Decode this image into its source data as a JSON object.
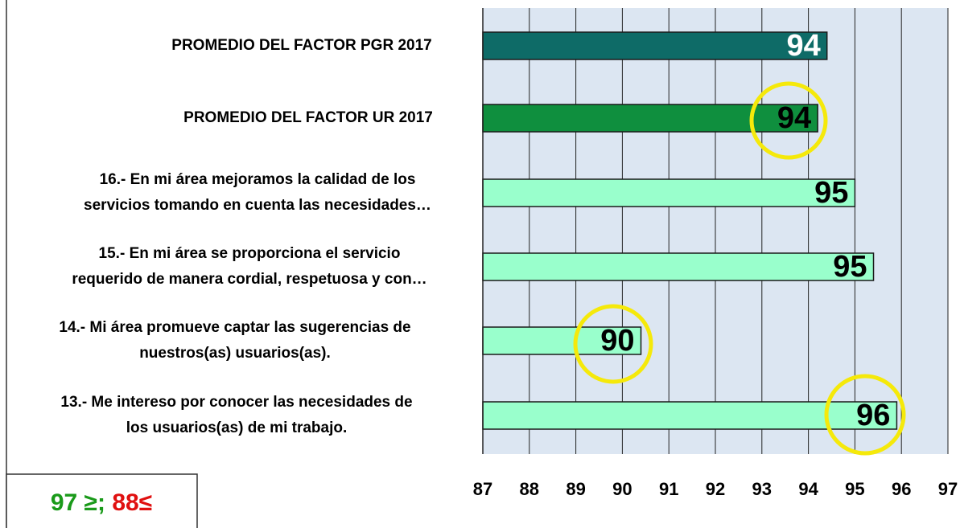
{
  "chart_data": {
    "type": "bar",
    "orientation": "horizontal",
    "categories": [
      [
        "PROMEDIO DEL FACTOR PGR 2017"
      ],
      [
        "PROMEDIO DEL FACTOR UR 2017"
      ],
      [
        "16.- En mi área mejoramos la calidad de los",
        "servicios tomando en cuenta las necesidades…"
      ],
      [
        "15.- En mi área se proporciona el servicio",
        "requerido de manera cordial, respetuosa y con…"
      ],
      [
        "14.- Mi área promueve captar las sugerencias de",
        "nuestros(as) usuarios(as)."
      ],
      [
        "13.- Me intereso por conocer las necesidades de",
        "los usuarios(as) de mi trabajo."
      ]
    ],
    "values": [
      94.4,
      94.2,
      95.0,
      95.4,
      90.4,
      95.9
    ],
    "value_labels": [
      "94",
      "94",
      "95",
      "95",
      "90",
      "96"
    ],
    "colors": [
      "#0e6b67",
      "#0f8f3e",
      "#99ffcc",
      "#99ffcc",
      "#99ffcc",
      "#99ffcc"
    ],
    "label_colors": [
      "#ffffff",
      "#000000",
      "#000000",
      "#000000",
      "#000000",
      "#000000"
    ],
    "xlim": [
      87,
      97
    ],
    "xticks": [
      87,
      88,
      89,
      90,
      91,
      92,
      93,
      94,
      95,
      96,
      97
    ],
    "grid": true,
    "note": [
      {
        "text": "97 ≥;",
        "color": "#1a9a1a"
      },
      {
        "text": "88≤",
        "color": "#e01010"
      }
    ]
  }
}
